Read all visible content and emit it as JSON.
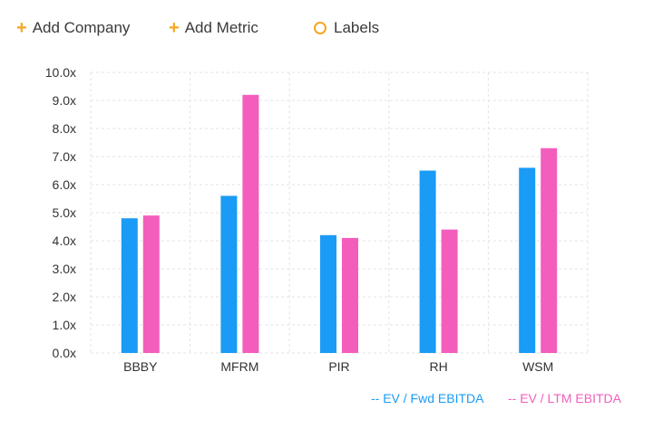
{
  "toolbar": {
    "add_company": {
      "icon": "plus-icon",
      "label": "Add Company"
    },
    "add_metric": {
      "icon": "plus-icon",
      "label": "Add Metric"
    },
    "labels": {
      "icon": "circle-icon",
      "label": "Labels"
    }
  },
  "colors": {
    "accent": "#f5a623",
    "fwd": "#1a9bf5",
    "ltm": "#f35ebd",
    "grid": "#e3e3e3",
    "axis_text": "#333333"
  },
  "chart_data": {
    "type": "bar",
    "categories": [
      "BBBY",
      "MFRM",
      "PIR",
      "RH",
      "WSM"
    ],
    "series": [
      {
        "name": "EV / Fwd EBITDA",
        "legend_label": "-- EV / Fwd EBITDA",
        "color": "#1a9bf5",
        "values": [
          4.8,
          5.6,
          4.2,
          6.5,
          6.6
        ]
      },
      {
        "name": "EV / LTM EBITDA",
        "legend_label": "-- EV / LTM EBITDA",
        "color": "#f35ebd",
        "values": [
          4.9,
          9.2,
          4.1,
          4.4,
          7.3
        ]
      }
    ],
    "yticks": [
      "0.0x",
      "1.0x",
      "2.0x",
      "3.0x",
      "4.0x",
      "5.0x",
      "6.0x",
      "7.0x",
      "8.0x",
      "9.0x",
      "10.0x"
    ],
    "ylim": [
      0,
      10
    ],
    "grid": true,
    "legend_position": "bottom-right",
    "title": "",
    "xlabel": "",
    "ylabel": ""
  }
}
